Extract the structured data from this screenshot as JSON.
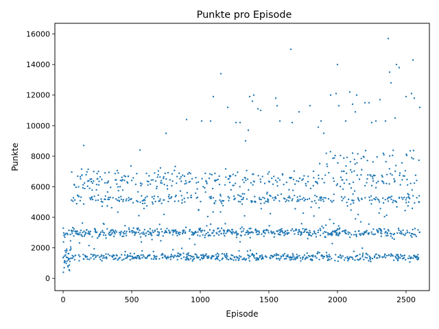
{
  "chart_data": {
    "type": "scatter",
    "title": "Punkte pro Episode",
    "xlabel": "Episode",
    "ylabel": "Punkte",
    "xlim": [
      -60,
      2670
    ],
    "ylim": [
      -800,
      16700
    ],
    "xticks": [
      0,
      500,
      1000,
      1500,
      2000,
      2500
    ],
    "xtick_labels": [
      "0",
      "500",
      "1000",
      "1500",
      "2000",
      "2500"
    ],
    "yticks": [
      0,
      2000,
      4000,
      6000,
      8000,
      10000,
      12000,
      14000,
      16000
    ],
    "ytick_labels": [
      "0",
      "2000",
      "4000",
      "6000",
      "8000",
      "10000",
      "12000",
      "14000",
      "16000"
    ],
    "grid": false,
    "point_color": "#1f77b4",
    "x_range": [
      0,
      2600
    ],
    "notes_marker_size": "small",
    "series": [
      {
        "x": [
          2,
          8,
          15,
          40,
          150,
          560,
          750,
          900,
          1010,
          1075,
          1095,
          1150,
          1200,
          1260,
          1290,
          1330,
          1350,
          1360,
          1380,
          1390,
          1420,
          1440,
          1550,
          1560,
          1580,
          1660,
          1670,
          1720,
          1800,
          1860,
          1880,
          1900,
          1950,
          1990,
          2000,
          2010,
          2060,
          2090,
          2110,
          2130,
          2140,
          2200,
          2230,
          2250,
          2280,
          2310,
          2350,
          2370,
          2380,
          2390,
          2420,
          2430,
          2450,
          2500,
          2540,
          2550,
          2560,
          2600
        ],
        "y": [
          400,
          700,
          1100,
          1300,
          8700,
          8400,
          9500,
          10400,
          10300,
          10300,
          11900,
          13400,
          11200,
          10200,
          10200,
          9000,
          9700,
          11900,
          11600,
          12000,
          11100,
          11000,
          11800,
          11300,
          10300,
          15000,
          10200,
          10900,
          11300,
          9900,
          10300,
          9500,
          12000,
          12100,
          14000,
          11300,
          10300,
          12200,
          11400,
          10900,
          12000,
          11500,
          11500,
          10200,
          10300,
          11700,
          10300,
          15700,
          13500,
          12800,
          10500,
          14000,
          13800,
          11900,
          12100,
          14300,
          11800,
          11200
        ]
      }
    ]
  }
}
